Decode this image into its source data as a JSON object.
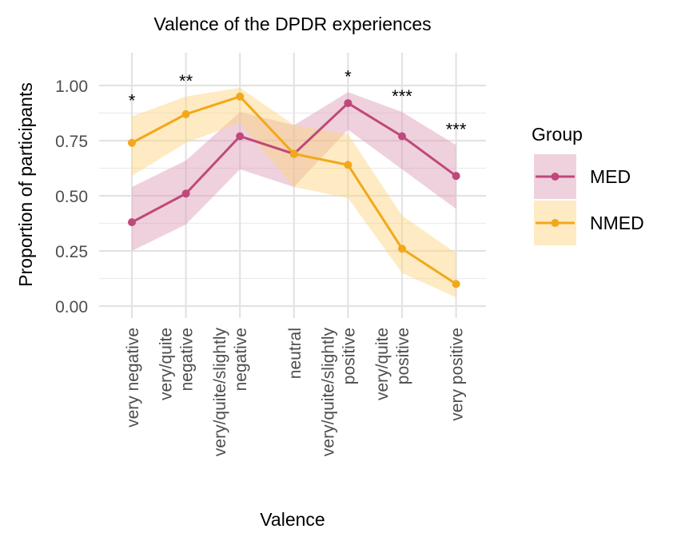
{
  "chart_data": {
    "type": "line",
    "title": "Valence of the DPDR experiences",
    "xlabel": "Valence",
    "ylabel": "Proportion of participants",
    "ylim": [
      0,
      1.1
    ],
    "y_ticks": [
      0,
      0.25,
      0.5,
      0.75,
      1.0
    ],
    "y_tick_labels": [
      "0.00",
      "0.25",
      "0.50",
      "0.75",
      "1.00"
    ],
    "grid": true,
    "categories": [
      [
        "very negative"
      ],
      [
        "very/quite",
        "negative"
      ],
      [
        "very/quite/slightly",
        "negative"
      ],
      [
        "neutral"
      ],
      [
        "very/quite/slightly",
        "positive"
      ],
      [
        "very/quite",
        "positive"
      ],
      [
        "very positive"
      ]
    ],
    "significance": [
      "*",
      "**",
      "",
      "",
      "*",
      "***",
      "***"
    ],
    "legend": {
      "title": "Group",
      "position": "right"
    },
    "series": [
      {
        "name": "MED",
        "color": "#c0487a",
        "ribbon_color": "#dc9ab4",
        "values": [
          0.38,
          0.51,
          0.77,
          0.69,
          0.92,
          0.77,
          0.59
        ],
        "lower": [
          0.25,
          0.37,
          0.62,
          0.54,
          0.8,
          0.62,
          0.44
        ],
        "upper": [
          0.54,
          0.66,
          0.88,
          0.82,
          0.97,
          0.88,
          0.73
        ]
      },
      {
        "name": "NMED",
        "color": "#f2a81a",
        "ribbon_color": "#fcd27a",
        "values": [
          0.74,
          0.87,
          0.95,
          0.69,
          0.64,
          0.26,
          0.1
        ],
        "lower": [
          0.59,
          0.74,
          0.83,
          0.54,
          0.49,
          0.15,
          0.04
        ],
        "upper": [
          0.86,
          0.95,
          0.99,
          0.82,
          0.78,
          0.41,
          0.24
        ]
      }
    ]
  }
}
